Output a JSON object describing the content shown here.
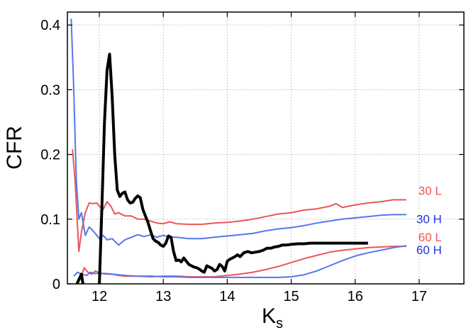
{
  "chart_data": {
    "type": "line",
    "title": "",
    "xlabel": "K",
    "xlabel_sub": "s",
    "ylabel": "CFR",
    "xlim": [
      11.5,
      17.7
    ],
    "ylim": [
      0,
      0.42
    ],
    "x_ticks": [
      12,
      13,
      14,
      15,
      16,
      17
    ],
    "x_tick_labels": [
      "12",
      "13",
      "14",
      "15",
      "16",
      "17"
    ],
    "y_ticks": [
      0,
      0.1,
      0.2,
      0.3,
      0.4
    ],
    "y_tick_labels": [
      "0",
      "0.1",
      "0.2",
      "0.3",
      "0.4"
    ],
    "grid": true,
    "legend": "right-inline",
    "series": [
      {
        "name": "30 L",
        "color": "#ee5555",
        "line_width": 2,
        "x": [
          11.58,
          11.62,
          11.68,
          11.72,
          11.78,
          11.84,
          11.9,
          11.96,
          12.0,
          12.06,
          12.12,
          12.18,
          12.24,
          12.3,
          12.4,
          12.5,
          12.6,
          12.7,
          12.8,
          12.9,
          13.0,
          13.1,
          13.2,
          13.4,
          13.6,
          13.8,
          14.0,
          14.2,
          14.4,
          14.6,
          14.8,
          15.0,
          15.2,
          15.4,
          15.6,
          15.7,
          15.8,
          16.0,
          16.2,
          16.4,
          16.6,
          16.8
        ],
        "values": [
          0.208,
          0.16,
          0.05,
          0.08,
          0.11,
          0.125,
          0.124,
          0.125,
          0.12,
          0.115,
          0.127,
          0.12,
          0.108,
          0.11,
          0.105,
          0.105,
          0.1,
          0.1,
          0.097,
          0.094,
          0.093,
          0.096,
          0.093,
          0.092,
          0.092,
          0.094,
          0.095,
          0.097,
          0.1,
          0.104,
          0.108,
          0.11,
          0.114,
          0.116,
          0.12,
          0.124,
          0.118,
          0.122,
          0.125,
          0.127,
          0.13,
          0.13
        ]
      },
      {
        "name": "30 H",
        "color": "#5577ee",
        "line_width": 2,
        "x": [
          11.56,
          11.6,
          11.64,
          11.68,
          11.72,
          11.78,
          11.84,
          11.9,
          11.96,
          12.0,
          12.06,
          12.12,
          12.2,
          12.3,
          12.4,
          12.5,
          12.6,
          12.7,
          12.8,
          12.9,
          13.0,
          13.1,
          13.2,
          13.4,
          13.6,
          13.8,
          14.0,
          14.2,
          14.4,
          14.6,
          14.8,
          15.0,
          15.2,
          15.4,
          15.6,
          15.8,
          16.0,
          16.2,
          16.4,
          16.6,
          16.8
        ],
        "values": [
          0.41,
          0.3,
          0.16,
          0.1,
          0.11,
          0.075,
          0.088,
          0.082,
          0.075,
          0.07,
          0.075,
          0.068,
          0.07,
          0.06,
          0.068,
          0.072,
          0.076,
          0.073,
          0.076,
          0.072,
          0.075,
          0.072,
          0.072,
          0.07,
          0.07,
          0.072,
          0.074,
          0.076,
          0.078,
          0.082,
          0.085,
          0.087,
          0.09,
          0.094,
          0.097,
          0.1,
          0.102,
          0.104,
          0.106,
          0.107,
          0.107
        ]
      },
      {
        "name": "60 L",
        "color": "#ee5555",
        "line_width": 2,
        "x": [
          11.64,
          11.68,
          11.72,
          11.76,
          11.82,
          11.88,
          11.94,
          12.0,
          12.1,
          12.2,
          12.3,
          12.4,
          12.6,
          12.8,
          13.0,
          13.2,
          13.4,
          13.6,
          13.8,
          14.0,
          14.2,
          14.4,
          14.6,
          14.8,
          15.0,
          15.2,
          15.4,
          15.6,
          15.8,
          16.0,
          16.2,
          16.4,
          16.6,
          16.8
        ],
        "values": [
          0.0,
          0.008,
          0.01,
          0.025,
          0.018,
          0.015,
          0.02,
          0.017,
          0.015,
          0.015,
          0.013,
          0.012,
          0.012,
          0.011,
          0.012,
          0.012,
          0.011,
          0.011,
          0.011,
          0.013,
          0.015,
          0.018,
          0.022,
          0.027,
          0.033,
          0.039,
          0.044,
          0.049,
          0.052,
          0.054,
          0.056,
          0.057,
          0.058,
          0.058
        ]
      },
      {
        "name": "60 H",
        "color": "#5577ee",
        "line_width": 2,
        "x": [
          11.6,
          11.66,
          11.72,
          11.8,
          11.86,
          11.92,
          12.0,
          12.1,
          12.2,
          12.3,
          12.4,
          12.6,
          12.8,
          13.0,
          13.2,
          13.4,
          13.6,
          13.8,
          14.0,
          14.2,
          14.4,
          14.6,
          14.8,
          15.0,
          15.2,
          15.4,
          15.6,
          15.8,
          16.0,
          16.2,
          16.4,
          16.6,
          16.8
        ],
        "values": [
          0.012,
          0.018,
          0.015,
          0.013,
          0.018,
          0.016,
          0.016,
          0.016,
          0.015,
          0.014,
          0.013,
          0.012,
          0.012,
          0.011,
          0.011,
          0.01,
          0.01,
          0.01,
          0.01,
          0.01,
          0.01,
          0.01,
          0.01,
          0.011,
          0.014,
          0.02,
          0.028,
          0.036,
          0.043,
          0.048,
          0.052,
          0.056,
          0.059
        ]
      },
      {
        "name": "",
        "color": "#000000",
        "line_width": 4,
        "x": [
          11.65,
          11.72,
          11.76,
          11.82,
          11.88,
          11.94,
          11.98,
          12.0,
          12.04,
          12.08,
          12.12,
          12.16,
          12.2,
          12.24,
          12.28,
          12.32,
          12.36,
          12.4,
          12.44,
          12.48,
          12.52,
          12.56,
          12.6,
          12.64,
          12.68,
          12.72,
          12.76,
          12.8,
          12.84,
          12.88,
          12.92,
          12.96,
          13.0,
          13.04,
          13.08,
          13.12,
          13.16,
          13.2,
          13.24,
          13.28,
          13.32,
          13.36,
          13.4,
          13.44,
          13.48,
          13.52,
          13.56,
          13.6,
          13.64,
          13.68,
          13.72,
          13.76,
          13.8,
          13.84,
          13.88,
          13.92,
          13.96,
          14.0,
          14.04,
          14.08,
          14.12,
          14.16,
          14.2,
          14.26,
          14.32,
          14.38,
          14.44,
          14.5,
          14.56,
          14.62,
          14.68,
          14.74,
          14.8,
          14.86,
          14.92,
          15.0,
          15.1,
          15.2,
          15.3,
          15.4,
          15.5,
          15.6,
          15.8,
          16.0,
          16.2
        ],
        "values": [
          0.0,
          0.015,
          -0.01,
          -0.02,
          -0.02,
          -0.02,
          -0.01,
          0.0,
          0.12,
          0.25,
          0.33,
          0.355,
          0.29,
          0.2,
          0.145,
          0.135,
          0.14,
          0.142,
          0.13,
          0.125,
          0.126,
          0.132,
          0.136,
          0.133,
          0.115,
          0.105,
          0.095,
          0.082,
          0.07,
          0.066,
          0.064,
          0.06,
          0.058,
          0.063,
          0.074,
          0.072,
          0.05,
          0.036,
          0.037,
          0.034,
          0.04,
          0.035,
          0.03,
          0.028,
          0.026,
          0.025,
          0.023,
          0.02,
          0.018,
          0.028,
          0.026,
          0.024,
          0.02,
          0.022,
          0.03,
          0.027,
          0.02,
          0.035,
          0.038,
          0.04,
          0.042,
          0.045,
          0.042,
          0.048,
          0.05,
          0.048,
          0.049,
          0.05,
          0.052,
          0.055,
          0.055,
          0.057,
          0.058,
          0.06,
          0.06,
          0.061,
          0.062,
          0.062,
          0.063,
          0.063,
          0.063,
          0.063,
          0.063,
          0.063,
          0.063
        ]
      }
    ]
  }
}
